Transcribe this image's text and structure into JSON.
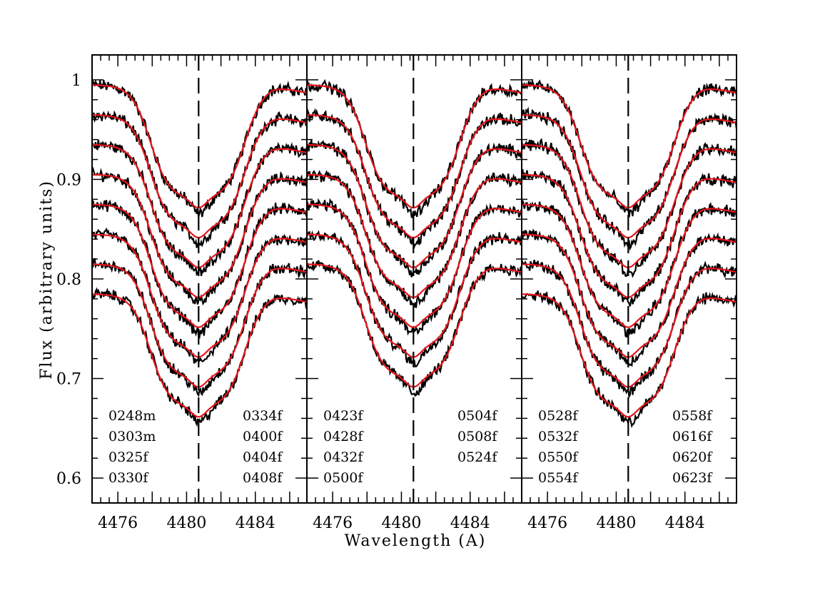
{
  "chart_data": {
    "type": "line",
    "title": "",
    "xlabel": "Wavelength (A)",
    "ylabel": "Flux (arbitrary units)",
    "xlim": [
      4474.5,
      4487.0
    ],
    "ylim": [
      0.575,
      1.025
    ],
    "x_ticks": [
      "4476",
      "4480",
      "4484"
    ],
    "y_ticks": [
      "0.6",
      "0.7",
      "0.8",
      "0.9",
      "1"
    ],
    "reference_line_x": 4480.7,
    "line_colors": {
      "observed": "#000000",
      "model": "#e8141a"
    },
    "panels": [
      {
        "offsets": [
          0.995,
          0.965,
          0.935,
          0.905,
          0.875,
          0.845,
          0.815,
          0.785
        ],
        "labels_left": [
          "0248m",
          "0303m",
          "0325f",
          "0330f"
        ],
        "labels_right": [
          "0334f",
          "0400f",
          "0404f",
          "0408f"
        ]
      },
      {
        "offsets": [
          0.995,
          0.965,
          0.935,
          0.905,
          0.875,
          0.845,
          0.815
        ],
        "labels_left": [
          "0423f",
          "0428f",
          "0432f",
          "0500f"
        ],
        "labels_right": [
          "0504f",
          "0508f",
          "0524f"
        ]
      },
      {
        "offsets": [
          0.995,
          0.965,
          0.935,
          0.905,
          0.875,
          0.845,
          0.815,
          0.785
        ],
        "labels_left": [
          "0528f",
          "0532f",
          "0550f",
          "0554f"
        ],
        "labels_right": [
          "0558f",
          "0616f",
          "0620f",
          "0623f"
        ]
      }
    ]
  }
}
